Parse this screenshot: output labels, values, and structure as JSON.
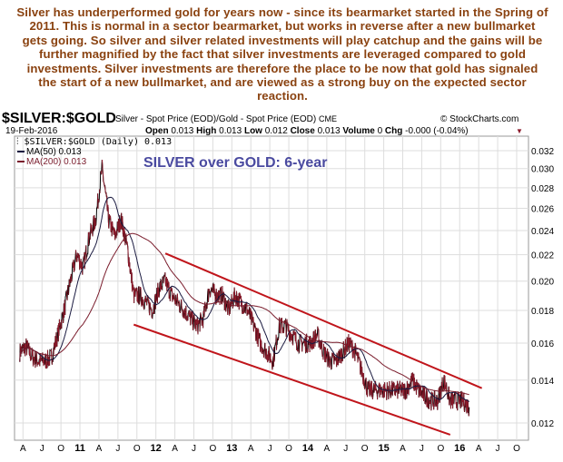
{
  "commentary": "Silver has underperformed gold for years now - since its bearmarket started in the Spring of 2011. This is normal in a sector bearmarket, but works in reverse after a new bullmarket gets going. So silver and silver related investments will play catchup and the gains will be further magnified by the fact that silver investments are leveraged compared to gold investments. Silver investments are therefore the place to be now that gold has signaled the start of a new bullmarket, and are viewed as a strong buy on the expected sector reaction.",
  "header": {
    "symbol": "$SILVER:$GOLD",
    "description": "Silver - Spot Price (EOD)/Gold - Spot Price (EOD)",
    "exchange": "CME",
    "credit": "© StockCharts.com",
    "date": "19-Feb-2016",
    "open_label": "Open",
    "open": "0.013",
    "high_label": "High",
    "high": "0.013",
    "low_label": "Low",
    "low": "0.012",
    "close_label": "Close",
    "close": "0.013",
    "volume_label": "Volume",
    "volume": "0",
    "chg_label": "Chg",
    "chg": "-0.000 (-0.04%)"
  },
  "colors": {
    "price": "#000000",
    "price_down": "#8b1a2b",
    "ma50": "#1a1a40",
    "ma200": "#7a1c2c",
    "trendline": "#c0151b",
    "annotation": "#4a4aa0",
    "commentary": "#8a4210"
  },
  "chart_data": {
    "type": "line",
    "title": "SILVER over GOLD: 6-year",
    "legend": [
      "$SILVER:$GOLD (Daily) 0.013",
      "MA(50) 0.013",
      "MA(200) 0.013"
    ],
    "legend_position": "top-left",
    "y_scale": "log",
    "ylim": [
      0.0113,
      0.0335
    ],
    "y_ticks": [
      "0.012",
      "0.014",
      "0.016",
      "0.018",
      "0.020",
      "0.022",
      "0.024",
      "0.026",
      "0.028",
      "0.030",
      "0.032"
    ],
    "x_ticks": [
      "A",
      "J",
      "O",
      "11",
      "A",
      "J",
      "O",
      "12",
      "A",
      "J",
      "O",
      "13",
      "A",
      "J",
      "O",
      "14",
      "A",
      "J",
      "O",
      "15",
      "A",
      "J",
      "O",
      "16",
      "A",
      "J",
      "O"
    ],
    "grid": true,
    "series": [
      {
        "start": "2010-03",
        "frequency": "monthly (approx.)",
        "values": [
          0.0155,
          0.0158,
          0.0152,
          0.015,
          0.015,
          0.0152,
          0.0165,
          0.018,
          0.02,
          0.022,
          0.021,
          0.0235,
          0.025,
          0.03,
          0.025,
          0.0235,
          0.025,
          0.0225,
          0.019,
          0.019,
          0.0185,
          0.018,
          0.0195,
          0.02,
          0.019,
          0.0185,
          0.018,
          0.0175,
          0.017,
          0.0175,
          0.0195,
          0.019,
          0.019,
          0.018,
          0.019,
          0.0185,
          0.018,
          0.017,
          0.016,
          0.0155,
          0.015,
          0.017,
          0.017,
          0.0165,
          0.016,
          0.016,
          0.016,
          0.0165,
          0.0155,
          0.015,
          0.015,
          0.0155,
          0.016,
          0.0155,
          0.0145,
          0.0135,
          0.0135,
          0.0135,
          0.0135,
          0.0135,
          0.0135,
          0.0135,
          0.014,
          0.0135,
          0.0132,
          0.013,
          0.013,
          0.014,
          0.013,
          0.013,
          0.013,
          0.0127
        ]
      }
    ],
    "trendlines": [
      {
        "from": [
          "2012-02",
          0.0221
        ],
        "to": [
          "2016-04",
          0.0136
        ]
      },
      {
        "from": [
          "2011-09",
          0.0171
        ],
        "to": [
          "2015-11",
          0.0115
        ]
      }
    ]
  }
}
